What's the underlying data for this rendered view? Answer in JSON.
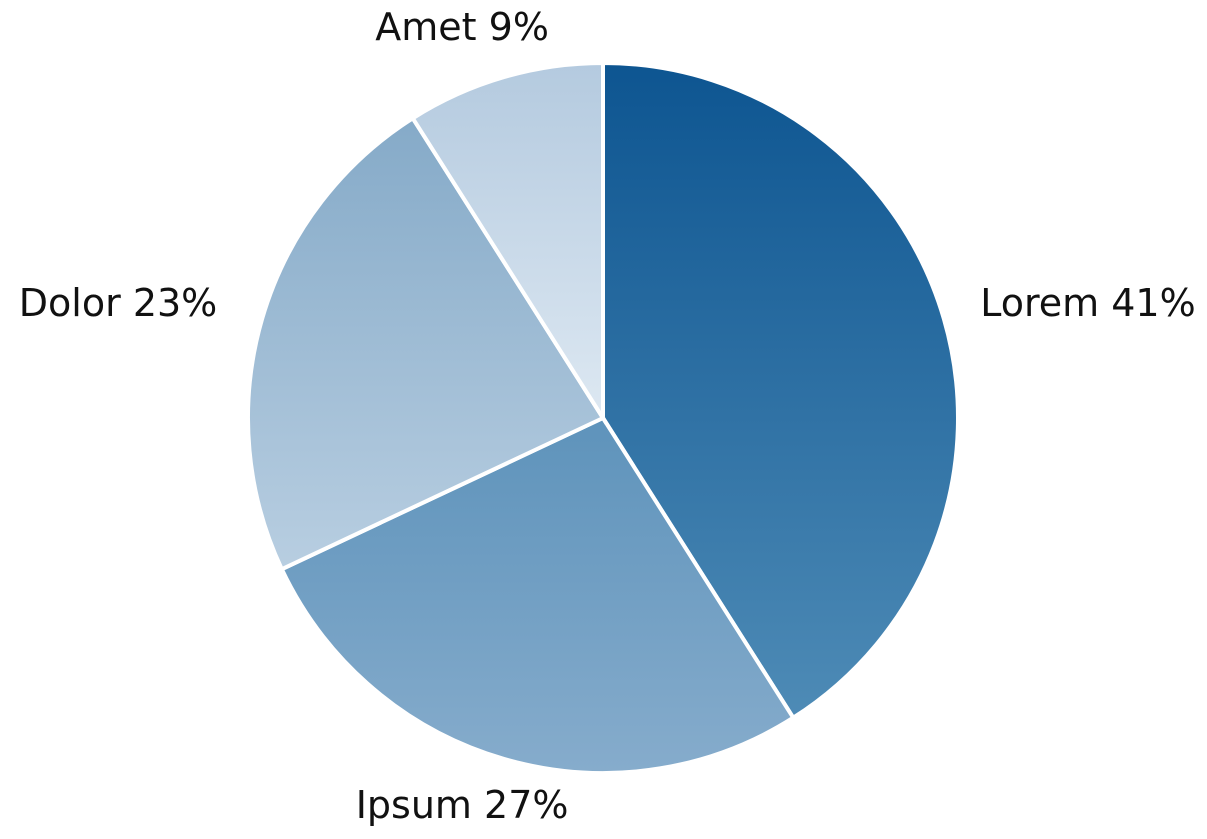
{
  "chart_data": {
    "type": "pie",
    "categories": [
      "Lorem",
      "Ipsum",
      "Dolor",
      "Amet"
    ],
    "values": [
      41,
      27,
      23,
      9
    ],
    "value_labels": [
      "41%",
      "27%",
      "23%",
      "9%"
    ],
    "colors": [
      [
        "#0d5591",
        "#4e8bb6"
      ],
      [
        "#5e93bb",
        "#86accc"
      ],
      [
        "#85aac8",
        "#b8cee1"
      ],
      [
        "#b4cadf",
        "#dde8f2"
      ]
    ]
  }
}
